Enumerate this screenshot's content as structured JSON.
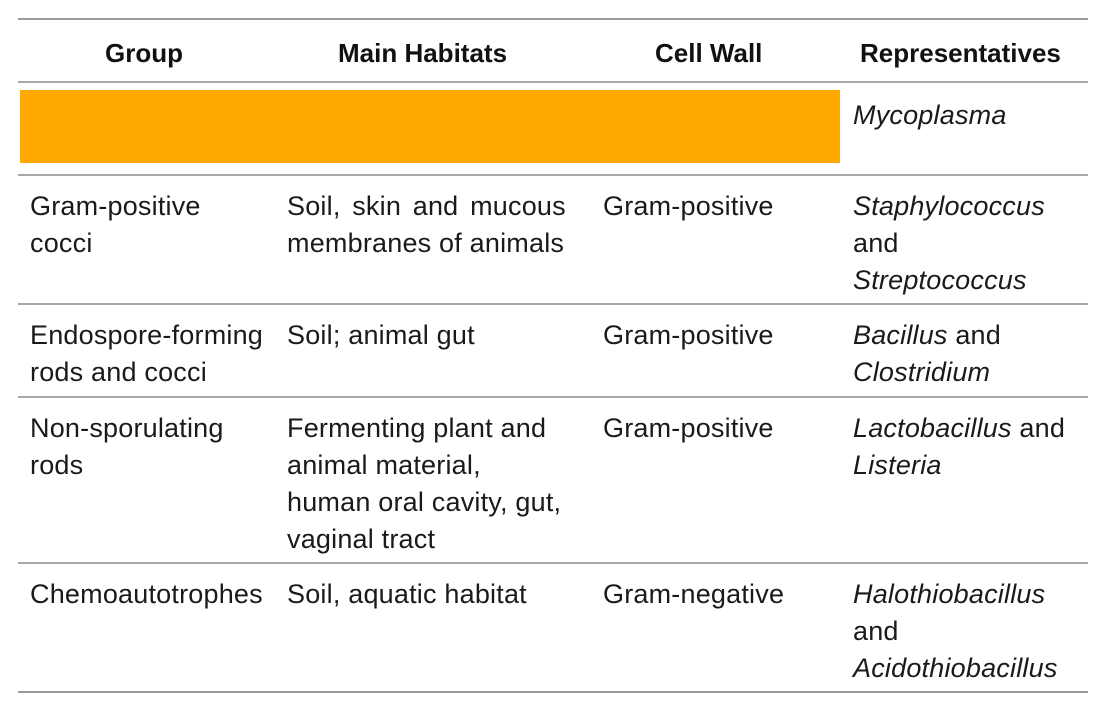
{
  "table": {
    "headers": {
      "group": "Group",
      "habitats": "Main Habitats",
      "cell_wall": "Cell Wall",
      "representatives": "Representatives"
    },
    "highlight_color": "#ffa800",
    "rows": [
      {
        "group": "",
        "habitats": "",
        "cell_wall": "",
        "representatives": [
          "Mycoplasma"
        ],
        "highlighted": true
      },
      {
        "group": [
          "Gram-positive",
          "cocci"
        ],
        "habitats": [
          "Soil, skin and mucous",
          "membranes of animals"
        ],
        "cell_wall": "Gram-positive",
        "representatives": [
          "Staphylococcus",
          "and",
          "Streptococcus"
        ]
      },
      {
        "group": [
          "Endospore-forming",
          "rods and cocci"
        ],
        "habitats": [
          "Soil; animal gut"
        ],
        "cell_wall": "Gram-positive",
        "representatives": [
          "Bacillus",
          "and",
          "Clostridium"
        ]
      },
      {
        "group": [
          "Non-sporulating",
          "rods"
        ],
        "habitats": [
          "Fermenting plant and",
          "animal material,",
          "human oral cavity, gut,",
          "vaginal tract"
        ],
        "cell_wall": "Gram-positive",
        "representatives": [
          "Lactobacillus",
          "and",
          "Listeria"
        ]
      },
      {
        "group": [
          "Chemoautotrophes"
        ],
        "habitats": [
          "Soil, aquatic habitat"
        ],
        "cell_wall": "Gram-negative",
        "representatives": [
          "Halothiobacillus",
          "and",
          "Acidothiobacillus"
        ]
      }
    ]
  }
}
